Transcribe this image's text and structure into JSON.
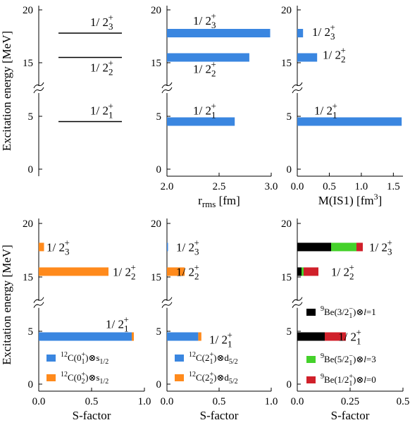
{
  "colors": {
    "blue": "#3a86e0",
    "orange": "#ff8a1c",
    "black": "#000000",
    "green": "#44d12a",
    "red": "#d0202a"
  },
  "level_labels": {
    "l3": {
      "main": "1/ 2",
      "sub": "3",
      "sup": "+"
    },
    "l2": {
      "main": "1/ 2",
      "sub": "2",
      "sup": "+"
    },
    "l1": {
      "main": "1/ 2",
      "sub": "1",
      "sup": "+"
    }
  },
  "y_axis": {
    "title": "Excitation energy [MeV]",
    "ticks": [
      "0",
      "5",
      "15",
      "20"
    ]
  },
  "chart_data": [
    {
      "panel": "top-left",
      "type": "level-scheme",
      "levels": [
        {
          "label": "1/2_1^+",
          "energy": 4.5
        },
        {
          "label": "1/2_2^+",
          "energy": 15.5
        },
        {
          "label": "1/2_3^+",
          "energy": 17.8
        }
      ],
      "ylabel": "Excitation energy [MeV]",
      "ylim": [
        0,
        21
      ],
      "axis_break": [
        7,
        13
      ]
    },
    {
      "panel": "top-middle",
      "type": "bar",
      "xlabel": "r_rms [fm]",
      "xlim": [
        2.0,
        3.0
      ],
      "xticks": [
        "2.0",
        "2.5",
        "3.0"
      ],
      "bars": [
        {
          "label": "1/2_1^+",
          "energy": 4.5,
          "value": 2.65
        },
        {
          "label": "1/2_2^+",
          "energy": 15.5,
          "value": 2.79
        },
        {
          "label": "1/2_3^+",
          "energy": 17.8,
          "value": 2.99
        }
      ]
    },
    {
      "panel": "top-right",
      "type": "bar",
      "xlabel": "M(IS1) [fm^3]",
      "xlim": [
        0,
        1.65
      ],
      "xticks": [
        "0.0",
        "0.5",
        "1.0",
        "1.5"
      ],
      "bars": [
        {
          "label": "1/2_1^+",
          "energy": 4.5,
          "value": 1.63
        },
        {
          "label": "1/2_2^+",
          "energy": 15.5,
          "value": 0.31
        },
        {
          "label": "1/2_3^+",
          "energy": 17.8,
          "value": 0.09
        }
      ]
    },
    {
      "panel": "bottom-left",
      "type": "stacked-bar",
      "xlabel": "S-factor",
      "xlim": [
        0,
        1.0
      ],
      "xticks": [
        "0.0",
        "0.5",
        "1.0"
      ],
      "series": [
        {
          "name": "12C(0_1^+)⊗s_1/2",
          "values": [
            0.88,
            0.0,
            0.0
          ]
        },
        {
          "name": "12C(0_2^+)⊗s_1/2",
          "values": [
            0.02,
            0.66,
            0.05
          ]
        }
      ],
      "energies": [
        4.5,
        15.5,
        17.8
      ]
    },
    {
      "panel": "bottom-middle",
      "type": "stacked-bar",
      "xlabel": "S-factor",
      "xlim": [
        0,
        1.0
      ],
      "xticks": [
        "0.0",
        "0.5",
        "1.0"
      ],
      "series": [
        {
          "name": "12C(2_1^+)⊗d_5/2",
          "values": [
            0.3,
            0.0,
            0.01
          ]
        },
        {
          "name": "12C(2_2^+)⊗d_5/2",
          "values": [
            0.03,
            0.17,
            0.0
          ]
        }
      ],
      "energies": [
        4.5,
        15.5,
        17.8
      ]
    },
    {
      "panel": "bottom-right",
      "type": "stacked-bar",
      "xlabel": "S-factor",
      "xlim": [
        0,
        0.5
      ],
      "xticks": [
        "0.0",
        "0.25",
        "0.5"
      ],
      "series": [
        {
          "name": "9Be(3/2_1^-)⊗l=1",
          "values": [
            0.13,
            0.02,
            0.16
          ]
        },
        {
          "name": "9Be(5/2_1^-)⊗l=3",
          "values": [
            0.0,
            0.01,
            0.12
          ]
        },
        {
          "name": "9Be(1/2_1^+)⊗l=0",
          "values": [
            0.1,
            0.07,
            0.03
          ]
        }
      ],
      "energies": [
        4.5,
        15.5,
        17.8
      ]
    }
  ],
  "legends": {
    "bl": [
      {
        "pre": "12",
        "base": "C(0",
        "sub": "1",
        "sup": "+",
        "post": ")⊗s",
        "post_sub": "1/2"
      },
      {
        "pre": "12",
        "base": "C(0",
        "sub": "2",
        "sup": "+",
        "post": ")⊗s",
        "post_sub": "1/2"
      }
    ],
    "bm": [
      {
        "pre": "12",
        "base": "C(2",
        "sub": "1",
        "sup": "+",
        "post": ")⊗d",
        "post_sub": "5/2"
      },
      {
        "pre": "12",
        "base": "C(2",
        "sub": "2",
        "sup": "+",
        "post": ")⊗d",
        "post_sub": "5/2"
      }
    ],
    "br": [
      {
        "pre": "9",
        "base": "Be(3/2",
        "sub": "1",
        "sup": "−",
        "post": ")⊗",
        "l": "l",
        "eq": "=1"
      },
      {
        "pre": "9",
        "base": "Be(5/2",
        "sub": "1",
        "sup": "−",
        "post": ")⊗",
        "l": "l",
        "eq": "=3"
      },
      {
        "pre": "9",
        "base": "Be(1/2",
        "sub": "1",
        "sup": "+",
        "post": ")⊗",
        "l": "l",
        "eq": "=0"
      }
    ]
  },
  "axis_titles": {
    "rrms_main": "r",
    "rrms_sub": "rms",
    "rrms_unit": " [fm]",
    "mis1_main": "M(IS1) [fm",
    "mis1_sup": "3",
    "mis1_end": "]",
    "sfactor": "S-factor"
  }
}
